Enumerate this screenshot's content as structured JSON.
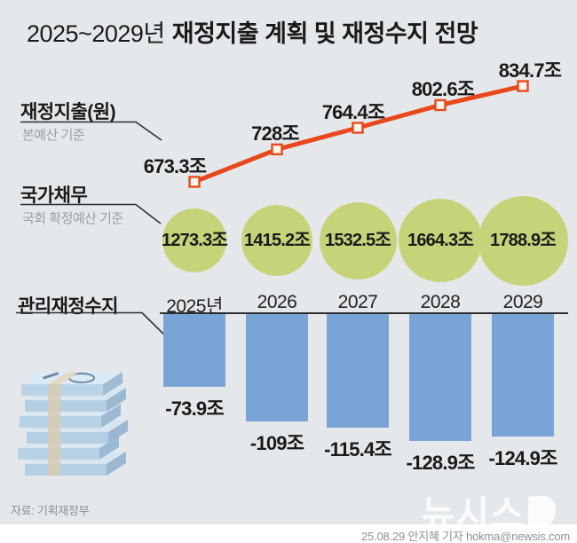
{
  "title": {
    "range": "2025~2029년",
    "main": "재정지출 계획 및 재정수지 전망"
  },
  "sections": {
    "expenditure": {
      "label": "재정지출(원)",
      "basis": "본예산 기준"
    },
    "debt": {
      "label": "국가채무",
      "basis": "국회 확정예산 기준"
    },
    "balance": {
      "label": "관리재정수지"
    }
  },
  "chart_data": [
    {
      "type": "line",
      "name": "재정지출",
      "unit": "조원",
      "categories": [
        "2025년",
        "2026",
        "2027",
        "2028",
        "2029"
      ],
      "values": [
        673.3,
        728,
        764.4,
        802.6,
        834.7
      ],
      "point_labels": [
        "673.3조",
        "728조",
        "764.4조",
        "802.6조",
        "834.7조"
      ],
      "color": "#e8481c",
      "marker": "open-square",
      "legend_position": "none"
    },
    {
      "type": "bubble",
      "name": "국가채무",
      "unit": "조원",
      "categories": [
        "2025년",
        "2026",
        "2027",
        "2028",
        "2029"
      ],
      "values": [
        1273.3,
        1415.2,
        1532.5,
        1664.3,
        1788.9
      ],
      "point_labels": [
        "1273.3조",
        "1415.2조",
        "1532.5조",
        "1664.3조",
        "1788.9조"
      ],
      "color": "#c6d379"
    },
    {
      "type": "bar",
      "name": "관리재정수지",
      "unit": "조원",
      "categories": [
        "2025년",
        "2026",
        "2027",
        "2028",
        "2029"
      ],
      "values": [
        -73.9,
        -109,
        -115.4,
        -128.9,
        -124.9
      ],
      "point_labels": [
        "-73.9조",
        "-109조",
        "-115.4조",
        "-128.9조",
        "-124.9조"
      ],
      "color": "#7aa4d6",
      "baseline": 0
    }
  ],
  "footer": {
    "source": "자료: 기획재정부",
    "logo": "뉴시스",
    "credit": "25.08.29 안지혜 기자 hokma@newsis.com"
  },
  "colors": {
    "background": "#e5e8eb",
    "line": "#e8481c",
    "bubble": "#c6d379",
    "bar": "#7aa4d6",
    "text": "#1a1a1a",
    "muted": "#9aa0a6"
  }
}
